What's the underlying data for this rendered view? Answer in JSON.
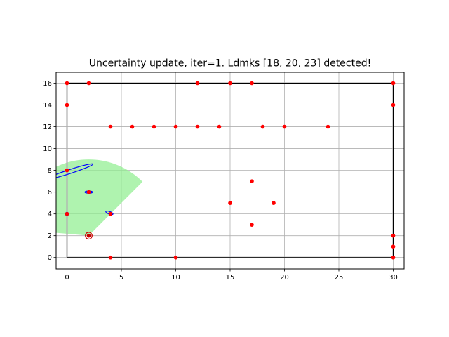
{
  "chart_data": {
    "type": "scatter",
    "title": "Uncertainty update, iter=1. Ldmks [18, 20, 23] detected!",
    "xlabel": "",
    "ylabel": "",
    "xlim": [
      -1,
      31
    ],
    "ylim": [
      -1.05,
      17
    ],
    "xticks": [
      0,
      5,
      10,
      15,
      20,
      25,
      30
    ],
    "yticks": [
      0,
      2,
      4,
      6,
      8,
      10,
      12,
      14,
      16
    ],
    "grid": true,
    "colors": {
      "landmark": "#ff0000",
      "ellipse": "#0000ff",
      "sensor_fov": "#90ee90",
      "boundary_true": "#000000",
      "boundary_est": "#b0b0b0",
      "robot": "#cc0000"
    },
    "landmarks": [
      [
        0,
        16
      ],
      [
        2,
        16
      ],
      [
        12,
        16
      ],
      [
        15,
        16
      ],
      [
        17,
        16
      ],
      [
        30,
        16
      ],
      [
        0,
        14
      ],
      [
        30,
        14
      ],
      [
        4,
        12
      ],
      [
        6,
        12
      ],
      [
        8,
        12
      ],
      [
        10,
        12
      ],
      [
        12,
        12
      ],
      [
        14,
        12
      ],
      [
        18,
        12
      ],
      [
        20,
        12
      ],
      [
        24,
        12
      ],
      [
        0,
        8
      ],
      [
        2,
        6
      ],
      [
        4,
        4
      ],
      [
        0,
        4
      ],
      [
        17,
        7
      ],
      [
        15,
        5
      ],
      [
        19,
        5
      ],
      [
        17,
        3
      ],
      [
        30,
        2
      ],
      [
        30,
        1
      ],
      [
        30,
        0
      ],
      [
        4,
        0
      ],
      [
        10,
        0
      ]
    ],
    "uncertainty_ellipses": [
      {
        "cx": 0.3,
        "cy": 7.9,
        "rx": 2.2,
        "ry": 0.18,
        "angle_deg": 18
      },
      {
        "cx": 2.0,
        "cy": 6.0,
        "rx": 0.35,
        "ry": 0.1,
        "angle_deg": 0
      },
      {
        "cx": 3.9,
        "cy": 4.1,
        "rx": 0.35,
        "ry": 0.12,
        "angle_deg": -20
      },
      {
        "cx": 0.0,
        "cy": 4.0,
        "rx": 0.15,
        "ry": 0.15,
        "angle_deg": 0
      }
    ],
    "robot_pose": {
      "x": 2,
      "y": 2
    },
    "sensor_fov": {
      "range": 7,
      "start_deg": 45,
      "end_deg": 175
    },
    "boundary_true": [
      [
        0,
        0
      ],
      [
        30,
        0
      ],
      [
        30,
        16
      ],
      [
        0,
        16
      ]
    ],
    "boundary_estimated": [
      [
        0,
        0
      ],
      [
        30,
        0
      ],
      [
        30,
        16
      ],
      [
        0,
        16
      ]
    ]
  }
}
